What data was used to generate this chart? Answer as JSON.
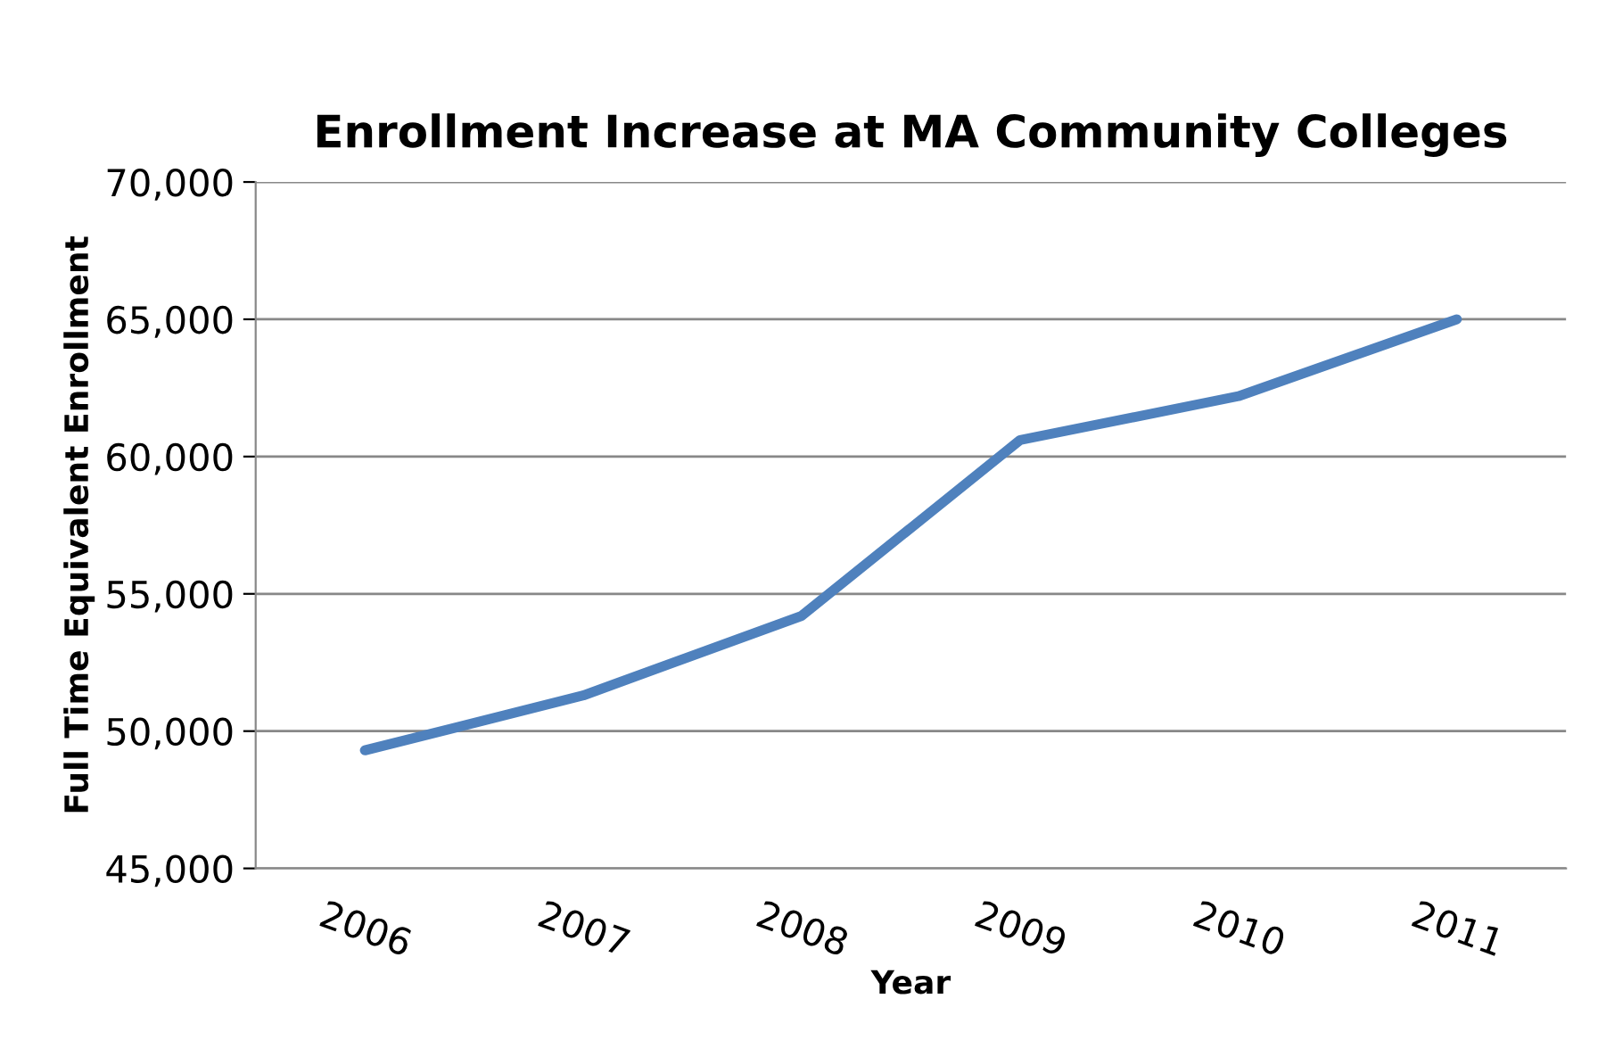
{
  "chart_data": {
    "type": "line",
    "title": "Enrollment Increase at MA Community Colleges",
    "xlabel": "Year",
    "ylabel": "Full Time Equivalent Enrollment",
    "categories": [
      "2006",
      "2007",
      "2008",
      "2009",
      "2010",
      "2011"
    ],
    "series": [
      {
        "color": "#4f81bd",
        "values": [
          49300,
          51300,
          54200,
          60600,
          62200,
          65000
        ]
      }
    ],
    "ylim": [
      45000,
      70000
    ],
    "yticks": [
      {
        "value": 45000,
        "label": "45,000"
      },
      {
        "value": 50000,
        "label": "50,000"
      },
      {
        "value": 55000,
        "label": "55,000"
      },
      {
        "value": 60000,
        "label": "60,000"
      },
      {
        "value": 65000,
        "label": "65,000"
      },
      {
        "value": 70000,
        "label": "70,000"
      }
    ],
    "grid": "y",
    "marker": "none",
    "line_style": "solid"
  }
}
